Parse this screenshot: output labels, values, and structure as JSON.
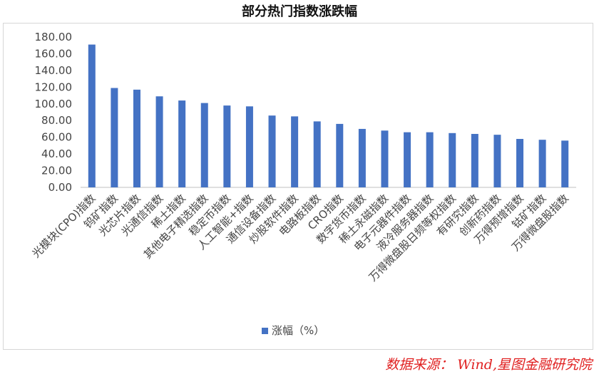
{
  "title": "部分热门指数涨跌幅",
  "source": "数据来源： Wind,星图金融研究院",
  "colors": {
    "bar": "#4472c4",
    "axis": "#bfbfbf",
    "source": "#e02020"
  },
  "chart_data": {
    "type": "bar",
    "categories": [
      "光模块(CPO)指数",
      "钨矿指数",
      "光芯片指数",
      "光通信指数",
      "稀土指数",
      "其他电子精选指数",
      "稳定币指数",
      "人工智能+指数",
      "通信设备指数",
      "炒股软件指数",
      "电路板指数",
      "CRO指数",
      "数字货币指数",
      "稀土永磁指数",
      "电子元器件指数",
      "液冷服务器指数",
      "万得微盘股日频等权指数",
      "有研究指数",
      "创新药指数",
      "万得预增指数",
      "钴矿指数",
      "万得微盘股指数"
    ],
    "series": [
      {
        "name": "涨幅（%）",
        "values": [
          171,
          119,
          117,
          109,
          104,
          101,
          98,
          97,
          86,
          85,
          79,
          76,
          70,
          68,
          66,
          66,
          65,
          64,
          63,
          58,
          57,
          56
        ]
      }
    ],
    "yticks": [
      "0.00",
      "20.00",
      "40.00",
      "60.00",
      "80.00",
      "100.00",
      "120.00",
      "140.00",
      "160.00",
      "180.00"
    ],
    "ylim": [
      0,
      180
    ],
    "legend_position": "bottom",
    "grid": false
  }
}
